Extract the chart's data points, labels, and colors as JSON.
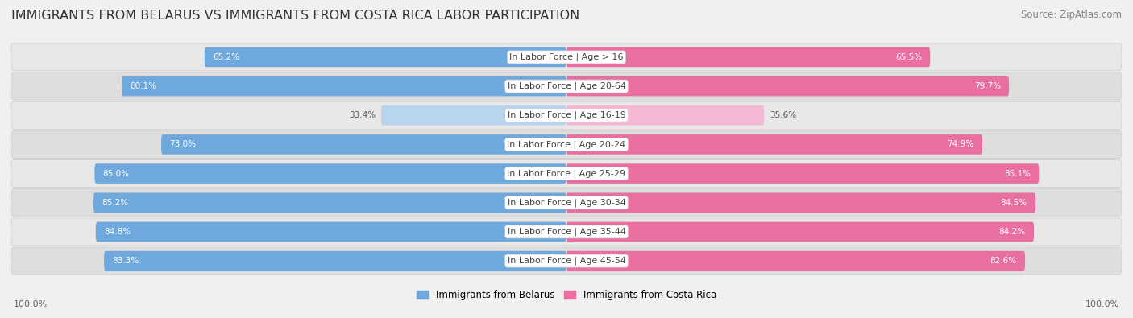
{
  "title": "IMMIGRANTS FROM BELARUS VS IMMIGRANTS FROM COSTA RICA LABOR PARTICIPATION",
  "source": "Source: ZipAtlas.com",
  "categories": [
    "In Labor Force | Age > 16",
    "In Labor Force | Age 20-64",
    "In Labor Force | Age 16-19",
    "In Labor Force | Age 20-24",
    "In Labor Force | Age 25-29",
    "In Labor Force | Age 30-34",
    "In Labor Force | Age 35-44",
    "In Labor Force | Age 45-54"
  ],
  "belarus_values": [
    65.2,
    80.1,
    33.4,
    73.0,
    85.0,
    85.2,
    84.8,
    83.3
  ],
  "costa_rica_values": [
    65.5,
    79.7,
    35.6,
    74.9,
    85.1,
    84.5,
    84.2,
    82.6
  ],
  "belarus_color_full": "#6fa8dc",
  "belarus_color_light": "#b8d4ee",
  "costa_rica_color_full": "#e96fa0",
  "costa_rica_color_light": "#f5b8d4",
  "belarus_label": "Immigrants from Belarus",
  "costa_rica_label": "Immigrants from Costa Rica",
  "background_color": "#f0f0f0",
  "row_bg": "#e8e8e8",
  "max_value": 100.0,
  "threshold_full_color": 50.0,
  "title_fontsize": 11.5,
  "label_fontsize": 8.0,
  "value_fontsize": 7.5,
  "source_fontsize": 8.5,
  "footer_label": "100.0%"
}
